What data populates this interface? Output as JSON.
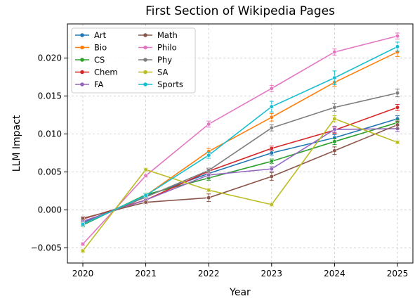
{
  "chart_data": {
    "type": "line",
    "title": "First Section of Wikipedia Pages",
    "xlabel": "Year",
    "ylabel": "LLM Impact",
    "x": [
      2020,
      2021,
      2022,
      2023,
      2024,
      2025
    ],
    "x_tick_labels": [
      "2020",
      "2021",
      "2022",
      "2023",
      "2024",
      "2025"
    ],
    "ylim": [
      -0.007,
      0.0245
    ],
    "y_ticks": [
      -0.005,
      0.0,
      0.005,
      0.01,
      0.015,
      0.02
    ],
    "y_tick_labels": [
      "−0.005",
      "0.000",
      "0.005",
      "0.010",
      "0.015",
      "0.020"
    ],
    "grid": true,
    "legend_position": "top-left",
    "series": [
      {
        "name": "Art",
        "color": "#1f77b4",
        "values": [
          -0.0017,
          0.0018,
          0.0048,
          0.0075,
          0.0095,
          0.012
        ],
        "errors": [
          0.0002,
          0.0002,
          0.0003,
          0.0003,
          0.0004,
          0.0004
        ]
      },
      {
        "name": "Bio",
        "color": "#ff7f0e",
        "values": [
          -0.0019,
          0.0019,
          0.0077,
          0.0122,
          0.0168,
          0.0208
        ],
        "errors": [
          0.0002,
          0.0002,
          0.0004,
          0.0005,
          0.0005,
          0.0006
        ]
      },
      {
        "name": "CS",
        "color": "#2ca02c",
        "values": [
          -0.002,
          0.002,
          0.0042,
          0.0064,
          0.009,
          0.0115
        ],
        "errors": [
          0.0002,
          0.0002,
          0.0003,
          0.0003,
          0.0004,
          0.0004
        ]
      },
      {
        "name": "Chem",
        "color": "#d62728",
        "values": [
          -0.0012,
          0.0013,
          0.0051,
          0.0081,
          0.0105,
          0.0135
        ],
        "errors": [
          0.0002,
          0.0002,
          0.0003,
          0.0003,
          0.0004,
          0.0004
        ]
      },
      {
        "name": "FA",
        "color": "#9467bd",
        "values": [
          -0.0015,
          0.0013,
          0.0046,
          0.0054,
          0.0106,
          0.0107
        ],
        "errors": [
          0.0002,
          0.0002,
          0.0003,
          0.0003,
          0.0004,
          0.0004
        ]
      },
      {
        "name": "Math",
        "color": "#8c564b",
        "values": [
          -0.0011,
          0.001,
          0.0016,
          0.0044,
          0.0078,
          0.0112
        ],
        "errors": [
          0.0002,
          0.0002,
          0.0005,
          0.0005,
          0.0005,
          0.0005
        ]
      },
      {
        "name": "Philo",
        "color": "#e377c2",
        "values": [
          -0.0045,
          0.0045,
          0.0113,
          0.016,
          0.0208,
          0.0229
        ],
        "errors": [
          0.0002,
          0.0002,
          0.0004,
          0.0004,
          0.0004,
          0.0004
        ]
      },
      {
        "name": "Phy",
        "color": "#7f7f7f",
        "values": [
          -0.0018,
          0.0017,
          0.0052,
          0.0108,
          0.0135,
          0.0154
        ],
        "errors": [
          0.0002,
          0.0002,
          0.0003,
          0.0004,
          0.0005,
          0.0005
        ]
      },
      {
        "name": "SA",
        "color": "#bcbd22",
        "values": [
          -0.0054,
          0.0053,
          0.0026,
          0.0007,
          0.012,
          0.0089
        ],
        "errors": [
          0.0002,
          0.0002,
          0.0002,
          0.0002,
          0.0004,
          0.0002
        ]
      },
      {
        "name": "Sports",
        "color": "#17becf",
        "values": [
          -0.0019,
          0.0019,
          0.0072,
          0.0136,
          0.0174,
          0.0215
        ],
        "errors": [
          0.0002,
          0.0002,
          0.0004,
          0.0007,
          0.0009,
          0.0006
        ]
      }
    ]
  }
}
